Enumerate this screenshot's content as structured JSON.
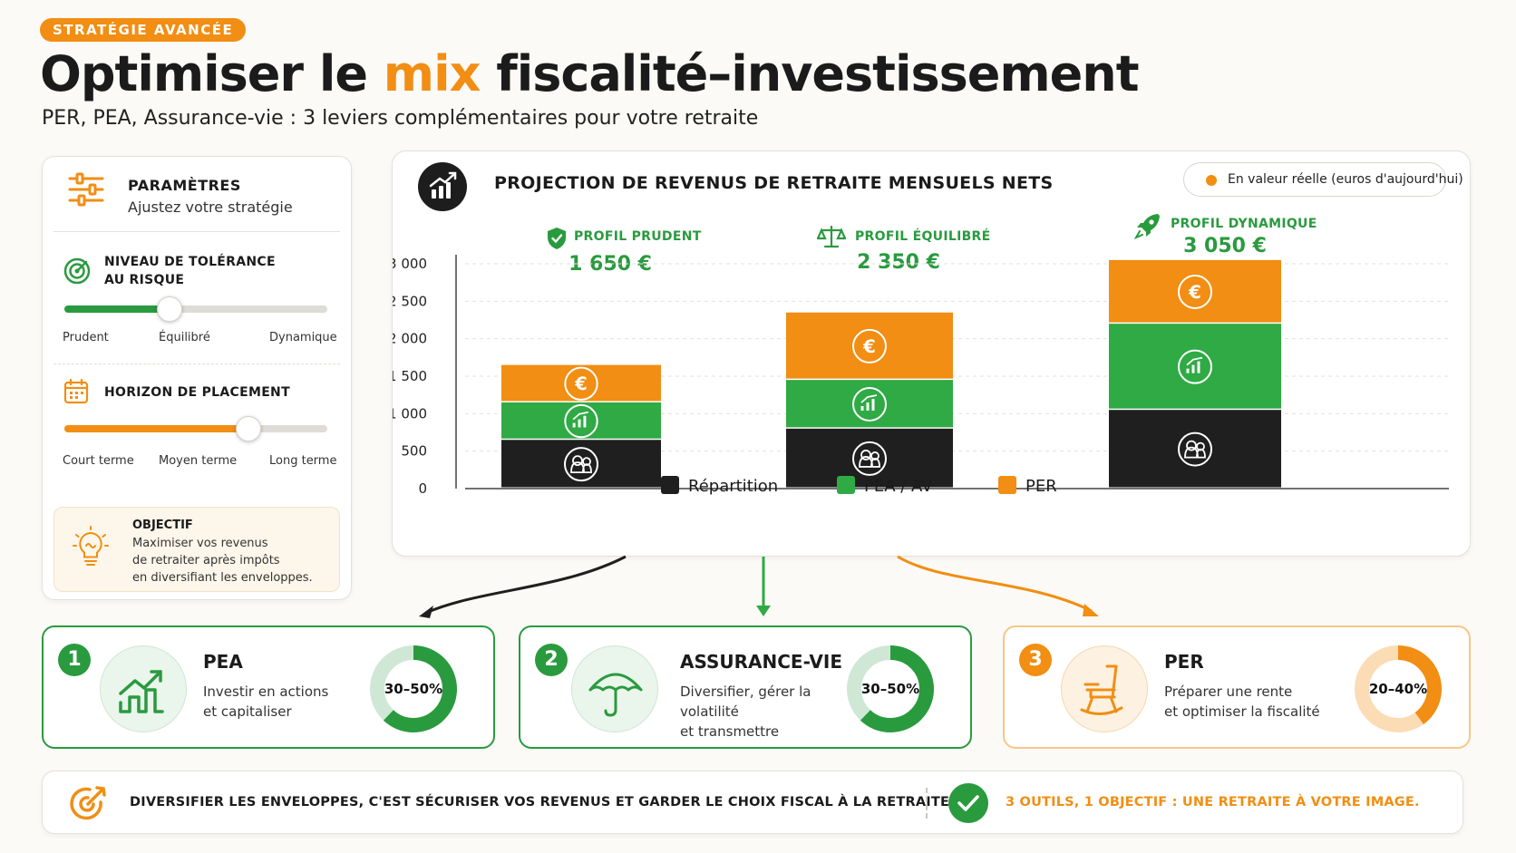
{
  "header": {
    "badge": "STRATÉGIE AVANCÉE",
    "title_part1": "Optimiser le ",
    "title_accent": "mix",
    "title_part2": " fiscalité–investissement",
    "subtitle": "PER, PEA, Assurance-vie : 3 leviers complémentaires pour votre retraite"
  },
  "params": {
    "title": "PARAMÈTRES",
    "subtitle": "Ajustez votre stratégie",
    "risk": {
      "title_line1": "NIVEAU DE TOLÉRANCE",
      "title_line2": "AU RISQUE",
      "labels": [
        "Prudent",
        "Équilibré",
        "Dynamique"
      ],
      "value": 0.4
    },
    "horizon": {
      "title": "HORIZON DE PLACEMENT",
      "labels": [
        "Court terme",
        "Moyen terme",
        "Long terme"
      ],
      "value": 0.7
    },
    "objective": {
      "title": "OBJECTIF",
      "lines": [
        "Maximiser vos revenus",
        "de retraiter après impôts",
        "en diversifiant les enveloppes."
      ]
    }
  },
  "chart": {
    "title": "PROJECTION DE REVENUS DE RETRAITE MENSUELS NETS",
    "legend_pill": "En valeur réelle (euros d'aujourd'hui)",
    "legend": [
      "Répartition",
      "PEA / AV",
      "PER"
    ]
  },
  "chart_data": {
    "type": "bar",
    "stacked": true,
    "categories": [
      "PROFIL PRUDENT",
      "PROFIL ÉQUILIBRÉ",
      "PROFIL DYNAMIQUE"
    ],
    "totals_labels": [
      "1 650 €",
      "2 350 €",
      "3 050 €"
    ],
    "series": [
      {
        "name": "Répartition",
        "values": [
          650,
          800,
          1050
        ],
        "color": "#1f1f1f"
      },
      {
        "name": "PEA / AV",
        "values": [
          500,
          650,
          1150
        ],
        "color": "#2faa44"
      },
      {
        "name": "PER",
        "values": [
          500,
          900,
          850
        ],
        "color": "#f18e13"
      }
    ],
    "ylim": [
      0,
      3000
    ],
    "yticks": [
      "0",
      "500",
      "1 000",
      "1 500",
      "2 000",
      "2 500",
      "3 000"
    ],
    "yticks_values": [
      0,
      500,
      1000,
      1500,
      2000,
      2500,
      3000
    ],
    "grid": true
  },
  "tools": [
    {
      "num": "1",
      "name": "PEA",
      "desc_line1": "Investir en actions",
      "desc_line2": "et capitaliser",
      "range": "30–50%",
      "fill": 0.62
    },
    {
      "num": "2",
      "name": "ASSURANCE-VIE",
      "desc_line1": "Diversifier, gérer la volatilité",
      "desc_line2": "et transmettre",
      "range": "30–50%",
      "fill": 0.62
    },
    {
      "num": "3",
      "name": "PER",
      "desc_line1": "Préparer une rente",
      "desc_line2": "et optimiser la fiscalité",
      "range": "20–40%",
      "fill": 0.4
    }
  ],
  "footer": {
    "left": "DIVERSIFIER LES ENVELOPPES, C'EST SÉCURISER VOS REVENUS ET GARDER LE CHOIX FISCAL À LA RETRAITE.",
    "right": "3 OUTILS, 1 OBJECTIF : UNE RETRAITE À VOTRE IMAGE."
  },
  "colors": {
    "orange": "#f18e13",
    "green": "#2faa44",
    "dark": "#1f1f1f"
  }
}
